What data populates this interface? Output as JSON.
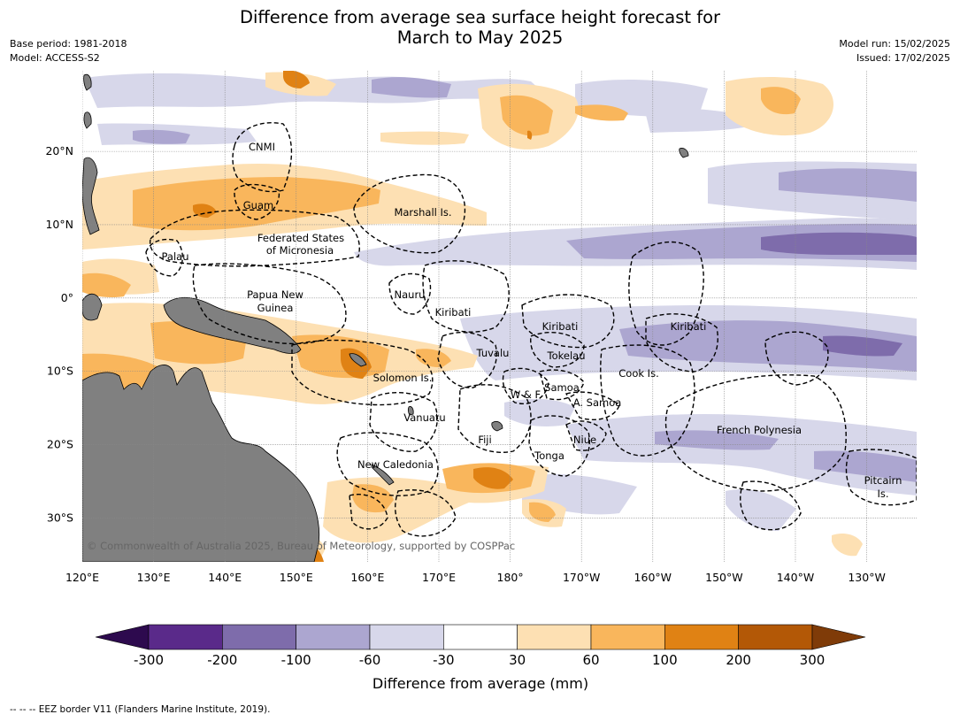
{
  "title": {
    "line1": "Difference from average sea surface height forecast for",
    "line2": "March to May 2025"
  },
  "meta": {
    "base_period": "Base period: 1981-2018",
    "model": "Model: ACCESS-S2",
    "model_run": "Model run: 15/02/2025",
    "issued": "Issued: 17/02/2025"
  },
  "axes": {
    "lon_ticks": [
      {
        "lon": 120,
        "label": "120°E"
      },
      {
        "lon": 130,
        "label": "130°E"
      },
      {
        "lon": 140,
        "label": "140°E"
      },
      {
        "lon": 150,
        "label": "150°E"
      },
      {
        "lon": 160,
        "label": "160°E"
      },
      {
        "lon": 170,
        "label": "170°E"
      },
      {
        "lon": 180,
        "label": "180°"
      },
      {
        "lon": 190,
        "label": "170°W"
      },
      {
        "lon": 200,
        "label": "160°W"
      },
      {
        "lon": 210,
        "label": "150°W"
      },
      {
        "lon": 220,
        "label": "140°W"
      },
      {
        "lon": 230,
        "label": "130°W"
      }
    ],
    "lat_ticks": [
      {
        "lat": 20,
        "label": "20°N"
      },
      {
        "lat": 10,
        "label": "10°N"
      },
      {
        "lat": 0,
        "label": "0°"
      },
      {
        "lat": -10,
        "label": "10°S"
      },
      {
        "lat": -20,
        "label": "20°S"
      },
      {
        "lat": -30,
        "label": "30°S"
      }
    ],
    "lon_range": [
      120,
      237
    ],
    "lat_range": [
      -36,
      31
    ]
  },
  "labels": {
    "cnmi": "CNMI",
    "guam": "Guam",
    "marshall": "Marshall Is.",
    "fsm1": "Federated States",
    "fsm2": "of Micronesia",
    "palau": "Palau",
    "png1": "Papua New",
    "png2": "Guinea",
    "nauru": "Nauru",
    "kiribati_w": "Kiribati",
    "kiribati_c": "Kiribati",
    "kiribati_e": "Kiribati",
    "tuvalu": "Tuvalu",
    "tokelau": "Tokelau",
    "cook": "Cook Is.",
    "solomon": "Solomon Is.",
    "samoa": "Samoa",
    "wf": "W & F",
    "asamoa": "A. Samoa",
    "vanuatu": "Vanuatu",
    "fiji": "Fiji",
    "niue": "Niue",
    "tonga": "Tonga",
    "fp": "French Polynesia",
    "newcal": "New Caledonia",
    "pitcairn1": "Pitcairn",
    "pitcairn2": "Is."
  },
  "copyright": "© Commonwealth of Australia 2025, Bureau of Meteorology, supported by COSPPac",
  "colorbar": {
    "title": "Difference from average (mm)",
    "ticks": [
      "-300",
      "-200",
      "-100",
      "-60",
      "-30",
      "30",
      "60",
      "100",
      "200",
      "300"
    ],
    "colors": [
      "#2d0a4e",
      "#5a2a8a",
      "#7e6cab",
      "#aca6d0",
      "#d7d7ea",
      "#ffffff",
      "#fde0b3",
      "#f9b65c",
      "#e08214",
      "#b35806",
      "#7f3b08"
    ]
  },
  "palette": {
    "land": "#808080",
    "grid": "#888888"
  },
  "footer": "--  --  -- EEZ border V11 (Flanders Marine Institute, 2019)."
}
